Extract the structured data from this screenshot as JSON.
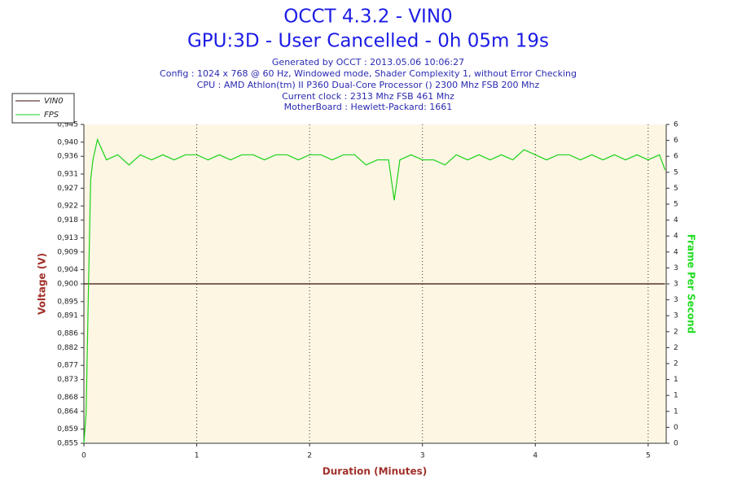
{
  "chart_data": {
    "type": "line",
    "title": "OCCT 4.3.2 - VIN0",
    "subtitle": "GPU:3D - User Cancelled - 0h 05m 19s",
    "info": [
      "Generated by OCCT : 2013.05.06 10:06:27",
      "Config : 1024 x 768 @ 60 Hz, Windowed mode, Shader Complexity 1, without Error Checking",
      "CPU : AMD Athlon(tm) II P360 Dual-Core Processor () 2300 Mhz FSB 200 Mhz",
      "Current clock : 2313 Mhz FSB 461 Mhz",
      "MotherBoard : Hewlett-Packard: 1661"
    ],
    "xlabel": "Duration (Minutes)",
    "ylabel": "Voltage (V)",
    "y2label": "Frame Per Second",
    "xlim": [
      0,
      5.16
    ],
    "xticks": [
      0,
      1,
      2,
      3,
      4,
      5
    ],
    "ylim": [
      0.855,
      0.945
    ],
    "yticks": [
      {
        "value": 0.855,
        "label": "0,855"
      },
      {
        "value": 0.859,
        "label": "0,859"
      },
      {
        "value": 0.864,
        "label": "0,864"
      },
      {
        "value": 0.868,
        "label": "0,868"
      },
      {
        "value": 0.873,
        "label": "0,873"
      },
      {
        "value": 0.877,
        "label": "0,877"
      },
      {
        "value": 0.882,
        "label": "0,882"
      },
      {
        "value": 0.886,
        "label": "0,886"
      },
      {
        "value": 0.891,
        "label": "0,891"
      },
      {
        "value": 0.895,
        "label": "0,895"
      },
      {
        "value": 0.9,
        "label": "0,900"
      },
      {
        "value": 0.904,
        "label": "0,904"
      },
      {
        "value": 0.909,
        "label": "0,909"
      },
      {
        "value": 0.913,
        "label": "0,913"
      },
      {
        "value": 0.918,
        "label": "0,918"
      },
      {
        "value": 0.922,
        "label": "0,922"
      },
      {
        "value": 0.927,
        "label": "0,927"
      },
      {
        "value": 0.931,
        "label": "0,931"
      },
      {
        "value": 0.936,
        "label": "0,936"
      },
      {
        "value": 0.94,
        "label": "0,940"
      },
      {
        "value": 0.945,
        "label": "0,945"
      }
    ],
    "y2lim": [
      0,
      6.3
    ],
    "y2ticks": [
      0,
      {
        "value": 0.315,
        "label": "0"
      },
      {
        "value": 0.63,
        "label": "1"
      },
      {
        "value": 0.945,
        "label": "1"
      },
      {
        "value": 1.26,
        "label": "1"
      },
      {
        "value": 1.575,
        "label": "2"
      },
      {
        "value": 1.89,
        "label": "2"
      },
      {
        "value": 2.205,
        "label": "2"
      },
      {
        "value": 2.52,
        "label": "3"
      },
      {
        "value": 2.835,
        "label": "3"
      },
      {
        "value": 3.15,
        "label": "3"
      },
      {
        "value": 3.465,
        "label": "3"
      },
      {
        "value": 3.78,
        "label": "4"
      },
      {
        "value": 4.095,
        "label": "4"
      },
      {
        "value": 4.41,
        "label": "4"
      },
      {
        "value": 4.725,
        "label": "5"
      },
      {
        "value": 5.04,
        "label": "5"
      },
      {
        "value": 5.355,
        "label": "5"
      },
      {
        "value": 5.67,
        "label": "6"
      },
      {
        "value": 5.985,
        "label": "6"
      },
      {
        "value": 6.3,
        "label": "6"
      }
    ],
    "grid": true,
    "legend": "top-left",
    "background": "#fdf6e3",
    "x": [
      0,
      0.02,
      0.04,
      0.06,
      0.08,
      0.12,
      0.2,
      0.3,
      0.4,
      0.5,
      0.6,
      0.7,
      0.8,
      0.9,
      1,
      1.1,
      1.2,
      1.3,
      1.4,
      1.5,
      1.6,
      1.7,
      1.8,
      1.9,
      2,
      2.1,
      2.2,
      2.3,
      2.4,
      2.5,
      2.6,
      2.7,
      2.75,
      2.8,
      2.9,
      3,
      3.1,
      3.2,
      3.3,
      3.4,
      3.5,
      3.6,
      3.7,
      3.8,
      3.9,
      4,
      4.1,
      4.2,
      4.3,
      4.4,
      4.5,
      4.6,
      4.7,
      4.8,
      4.9,
      5,
      5.1,
      5.15
    ],
    "series": [
      {
        "name": "VIN0",
        "color": "#3a0a0a",
        "values": [
          0.9,
          0.9,
          0.9,
          0.9,
          0.9,
          0.9,
          0.9,
          0.9,
          0.9,
          0.9,
          0.9,
          0.9,
          0.9,
          0.9,
          0.9,
          0.9,
          0.9,
          0.9,
          0.9,
          0.9,
          0.9,
          0.9,
          0.9,
          0.9,
          0.9,
          0.9,
          0.9,
          0.9,
          0.9,
          0.9,
          0.9,
          0.9,
          0.9,
          0.9,
          0.9,
          0.9,
          0.9,
          0.9,
          0.9,
          0.9,
          0.9,
          0.9,
          0.9,
          0.9,
          0.9,
          0.9,
          0.9,
          0.9,
          0.9,
          0.9,
          0.9,
          0.9,
          0.9,
          0.9,
          0.9,
          0.9,
          0.9,
          0.9
        ]
      },
      {
        "name": "FPS",
        "color": "#19d219",
        "axis": "y2",
        "values": [
          0,
          0.6,
          3.0,
          5.2,
          5.6,
          6.0,
          5.6,
          5.7,
          5.5,
          5.7,
          5.6,
          5.7,
          5.6,
          5.7,
          5.7,
          5.6,
          5.7,
          5.6,
          5.7,
          5.7,
          5.6,
          5.7,
          5.7,
          5.6,
          5.7,
          5.7,
          5.6,
          5.7,
          5.7,
          5.5,
          5.6,
          5.6,
          4.8,
          5.6,
          5.7,
          5.6,
          5.6,
          5.5,
          5.7,
          5.6,
          5.7,
          5.6,
          5.7,
          5.6,
          5.8,
          5.7,
          5.6,
          5.7,
          5.7,
          5.6,
          5.7,
          5.6,
          5.7,
          5.6,
          5.7,
          5.6,
          5.7,
          5.4
        ]
      }
    ]
  }
}
